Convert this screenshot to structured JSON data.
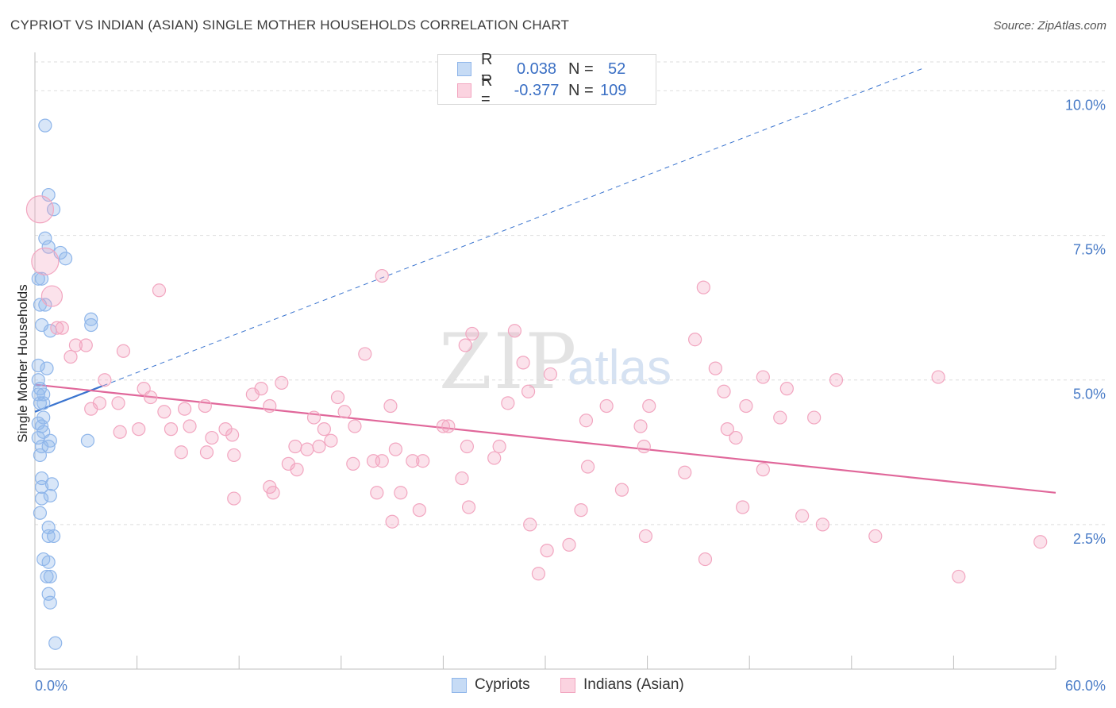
{
  "header": {
    "title": "CYPRIOT VS INDIAN (ASIAN) SINGLE MOTHER HOUSEHOLDS CORRELATION CHART",
    "source": "Source: ZipAtlas.com"
  },
  "legend": {
    "r_label": "R =",
    "n_label": "N =",
    "rows": [
      {
        "r": "0.038",
        "n": "52",
        "color": "#8fb6ea"
      },
      {
        "r": "-0.377",
        "n": "109",
        "color": "#f2a6c0"
      }
    ]
  },
  "watermark": {
    "zip": "ZIP",
    "atlas": "atlas"
  },
  "bottom_legend": {
    "cypriots": "Cypriots",
    "indians": "Indians (Asian)"
  },
  "chart_data": {
    "type": "scatter",
    "xlabel": "",
    "ylabel": "Single Mother Households",
    "xlim": [
      0,
      60
    ],
    "ylim": [
      0,
      10.5
    ],
    "x_tick_labels": [
      "0.0%",
      "60.0%"
    ],
    "y_tick_labels": [
      "2.5%",
      "5.0%",
      "7.5%",
      "10.0%"
    ],
    "y_ticks": [
      2.5,
      5.0,
      7.5,
      10.0
    ],
    "grid": true,
    "legend_position": "top-center",
    "series": [
      {
        "name": "Cypriots",
        "color": "#8fb6ea",
        "line_color": "#3a74cf",
        "trend_solid": [
          [
            0,
            4.45
          ],
          [
            4.0,
            4.9
          ]
        ],
        "trend_dashed": [
          [
            4.0,
            4.9
          ],
          [
            52.3,
            10.4
          ]
        ],
        "points": [
          [
            0.6,
            9.4
          ],
          [
            0.8,
            8.2
          ],
          [
            1.1,
            7.95
          ],
          [
            0.6,
            7.45
          ],
          [
            0.8,
            7.3
          ],
          [
            1.5,
            7.2
          ],
          [
            1.8,
            7.1
          ],
          [
            0.2,
            6.75
          ],
          [
            0.4,
            6.75
          ],
          [
            0.3,
            6.3
          ],
          [
            0.6,
            6.3
          ],
          [
            3.3,
            6.05
          ],
          [
            3.3,
            5.95
          ],
          [
            0.4,
            5.95
          ],
          [
            0.9,
            5.85
          ],
          [
            0.2,
            5.25
          ],
          [
            0.7,
            5.2
          ],
          [
            0.2,
            5.0
          ],
          [
            0.3,
            4.85
          ],
          [
            0.2,
            4.75
          ],
          [
            0.5,
            4.75
          ],
          [
            0.3,
            4.6
          ],
          [
            0.5,
            4.6
          ],
          [
            0.5,
            4.35
          ],
          [
            0.2,
            4.25
          ],
          [
            0.4,
            4.2
          ],
          [
            0.5,
            4.1
          ],
          [
            0.2,
            4.0
          ],
          [
            3.1,
            3.95
          ],
          [
            0.9,
            3.95
          ],
          [
            0.4,
            3.85
          ],
          [
            0.8,
            3.85
          ],
          [
            0.3,
            3.7
          ],
          [
            0.4,
            3.3
          ],
          [
            1.0,
            3.2
          ],
          [
            0.4,
            3.15
          ],
          [
            0.9,
            3.0
          ],
          [
            0.4,
            2.95
          ],
          [
            0.3,
            2.7
          ],
          [
            0.8,
            2.45
          ],
          [
            0.8,
            2.3
          ],
          [
            1.1,
            2.3
          ],
          [
            0.5,
            1.9
          ],
          [
            0.8,
            1.85
          ],
          [
            0.7,
            1.6
          ],
          [
            0.9,
            1.6
          ],
          [
            0.8,
            1.3
          ],
          [
            0.9,
            1.15
          ],
          [
            1.2,
            0.45
          ]
        ]
      },
      {
        "name": "Indians (Asian)",
        "color": "#f2a6c0",
        "line_color": "#e0679a",
        "trend_solid": [
          [
            0,
            4.92
          ],
          [
            60,
            3.05
          ]
        ],
        "points": [
          [
            0.3,
            7.95
          ],
          [
            0.6,
            7.05
          ],
          [
            1.0,
            6.45
          ],
          [
            1.3,
            5.9
          ],
          [
            1.6,
            5.9
          ],
          [
            2.4,
            5.6
          ],
          [
            3.0,
            5.6
          ],
          [
            2.1,
            5.4
          ],
          [
            5.2,
            5.5
          ],
          [
            7.3,
            6.55
          ],
          [
            20.4,
            6.8
          ],
          [
            39.3,
            6.6
          ],
          [
            25.7,
            5.8
          ],
          [
            28.2,
            5.85
          ],
          [
            19.4,
            5.45
          ],
          [
            25.3,
            5.6
          ],
          [
            38.8,
            5.7
          ],
          [
            40.0,
            5.2
          ],
          [
            28.7,
            5.3
          ],
          [
            30.3,
            5.1
          ],
          [
            42.8,
            5.05
          ],
          [
            53.1,
            5.05
          ],
          [
            44.2,
            4.85
          ],
          [
            47.1,
            5.0
          ],
          [
            4.1,
            5.0
          ],
          [
            6.4,
            4.85
          ],
          [
            13.3,
            4.85
          ],
          [
            14.5,
            4.95
          ],
          [
            6.8,
            4.7
          ],
          [
            12.8,
            4.75
          ],
          [
            17.8,
            4.7
          ],
          [
            29.0,
            4.8
          ],
          [
            40.5,
            4.8
          ],
          [
            3.8,
            4.6
          ],
          [
            4.9,
            4.6
          ],
          [
            10.0,
            4.55
          ],
          [
            13.8,
            4.55
          ],
          [
            20.9,
            4.55
          ],
          [
            27.8,
            4.6
          ],
          [
            33.6,
            4.55
          ],
          [
            36.1,
            4.55
          ],
          [
            41.8,
            4.55
          ],
          [
            3.3,
            4.5
          ],
          [
            7.6,
            4.45
          ],
          [
            8.8,
            4.5
          ],
          [
            18.2,
            4.45
          ],
          [
            16.4,
            4.35
          ],
          [
            32.4,
            4.3
          ],
          [
            43.8,
            4.35
          ],
          [
            45.8,
            4.35
          ],
          [
            6.1,
            4.15
          ],
          [
            9.1,
            4.2
          ],
          [
            11.2,
            4.15
          ],
          [
            17.0,
            4.15
          ],
          [
            18.8,
            4.2
          ],
          [
            24.0,
            4.2
          ],
          [
            24.3,
            4.2
          ],
          [
            35.6,
            4.2
          ],
          [
            40.7,
            4.15
          ],
          [
            5.0,
            4.1
          ],
          [
            8.0,
            4.15
          ],
          [
            10.4,
            4.0
          ],
          [
            11.6,
            4.05
          ],
          [
            15.3,
            3.85
          ],
          [
            16.0,
            3.8
          ],
          [
            17.4,
            3.95
          ],
          [
            16.7,
            3.85
          ],
          [
            21.2,
            3.8
          ],
          [
            25.4,
            3.85
          ],
          [
            27.3,
            3.85
          ],
          [
            35.8,
            3.85
          ],
          [
            41.2,
            4.0
          ],
          [
            8.6,
            3.75
          ],
          [
            10.1,
            3.75
          ],
          [
            11.7,
            3.7
          ],
          [
            14.9,
            3.55
          ],
          [
            15.4,
            3.45
          ],
          [
            18.7,
            3.55
          ],
          [
            19.9,
            3.6
          ],
          [
            20.4,
            3.6
          ],
          [
            22.2,
            3.6
          ],
          [
            22.8,
            3.6
          ],
          [
            27.0,
            3.65
          ],
          [
            32.5,
            3.5
          ],
          [
            38.2,
            3.4
          ],
          [
            42.8,
            3.45
          ],
          [
            13.8,
            3.15
          ],
          [
            14.0,
            3.05
          ],
          [
            20.1,
            3.05
          ],
          [
            21.5,
            3.05
          ],
          [
            11.7,
            2.95
          ],
          [
            25.1,
            3.3
          ],
          [
            34.5,
            3.1
          ],
          [
            25.5,
            2.8
          ],
          [
            22.6,
            2.75
          ],
          [
            32.1,
            2.75
          ],
          [
            41.6,
            2.8
          ],
          [
            45.1,
            2.65
          ],
          [
            21.0,
            2.55
          ],
          [
            29.1,
            2.5
          ],
          [
            35.9,
            2.3
          ],
          [
            46.3,
            2.5
          ],
          [
            49.4,
            2.3
          ],
          [
            59.1,
            2.2
          ],
          [
            30.1,
            2.05
          ],
          [
            31.4,
            2.15
          ],
          [
            39.4,
            1.9
          ],
          [
            29.6,
            1.65
          ],
          [
            54.3,
            1.6
          ]
        ]
      }
    ]
  }
}
